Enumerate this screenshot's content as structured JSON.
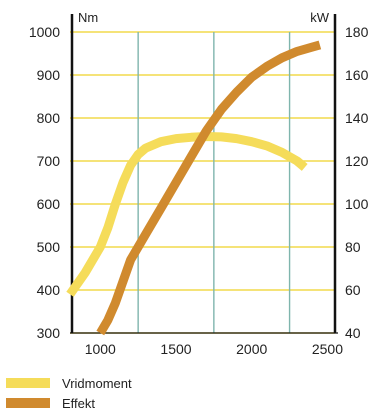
{
  "chart_data": {
    "type": "line",
    "x": [
      800,
      2500
    ],
    "xticks": [
      1000,
      1500,
      2000,
      2500
    ],
    "xlim": [
      800,
      2550
    ],
    "y_left": {
      "unit": "Nm",
      "lim": [
        300,
        1000
      ],
      "ticks": [
        300,
        400,
        500,
        600,
        700,
        800,
        900,
        1000
      ]
    },
    "y_right": {
      "unit": "kW",
      "lim": [
        40,
        180
      ],
      "ticks": [
        40,
        60,
        80,
        100,
        120,
        140,
        160,
        180
      ]
    },
    "grid": true,
    "legend": "bottom",
    "series": [
      {
        "name": "Vridmoment",
        "axis": "left",
        "color": "#F5DC5A",
        "x": [
          800,
          900,
          1000,
          1050,
          1100,
          1150,
          1200,
          1250,
          1300,
          1400,
          1500,
          1600,
          1700,
          1800,
          1900,
          2000,
          2100,
          2200,
          2300,
          2350
        ],
        "y": [
          390,
          440,
          500,
          545,
          600,
          650,
          690,
          715,
          730,
          745,
          752,
          755,
          757,
          756,
          752,
          745,
          735,
          720,
          700,
          685
        ]
      },
      {
        "name": "Effekt",
        "axis": "right",
        "color": "#D08A2E",
        "x": [
          1000,
          1050,
          1100,
          1150,
          1200,
          1300,
          1400,
          1500,
          1600,
          1700,
          1800,
          1900,
          2000,
          2100,
          2200,
          2300,
          2400,
          2450
        ],
        "y": [
          40,
          46,
          54,
          64,
          74,
          86,
          98,
          110,
          122,
          134,
          144,
          152,
          159,
          164,
          168,
          171,
          173,
          174
        ]
      }
    ]
  }
}
